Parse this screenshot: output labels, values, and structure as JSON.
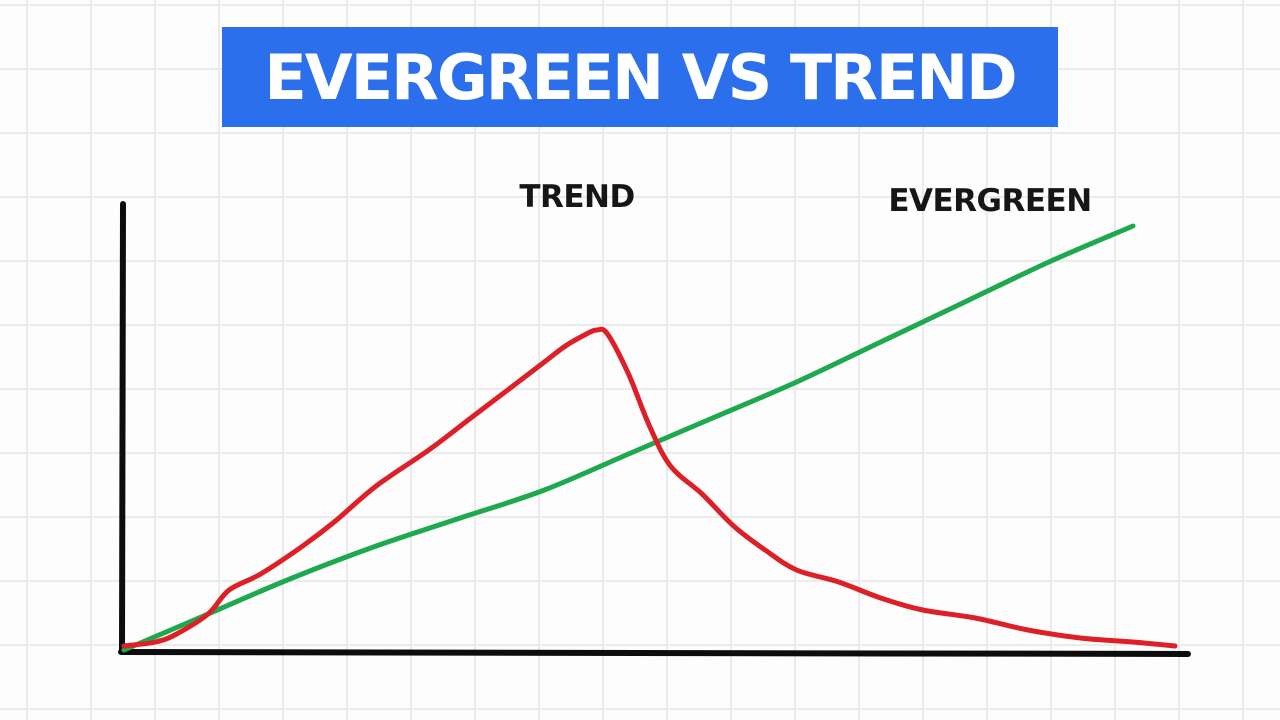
{
  "chart_data": {
    "type": "line",
    "title": "EVERGREEN VS TREND",
    "xlabel": "",
    "ylabel": "",
    "xlim": [
      0,
      100
    ],
    "ylim": [
      0,
      100
    ],
    "grid": true,
    "legend": "none",
    "series": [
      {
        "name": "TREND",
        "color": "#dd2027",
        "x": [
          0,
          3,
          5,
          8,
          10,
          13,
          17,
          20,
          24,
          29,
          33,
          37,
          40,
          42,
          44,
          45,
          46,
          48,
          50,
          52,
          55,
          58,
          61,
          64,
          68,
          72,
          76,
          81,
          86,
          91,
          96,
          100
        ],
        "y": [
          1,
          2,
          4,
          9,
          15,
          19,
          26,
          32,
          41,
          50,
          58,
          66,
          72,
          76,
          79,
          80,
          79,
          69,
          56,
          46,
          39,
          31,
          25,
          20,
          17,
          13,
          10,
          8,
          5,
          3,
          2,
          1
        ]
      },
      {
        "name": "EVERGREEN",
        "color": "#1fa94f",
        "x": [
          0,
          8,
          16,
          24,
          32,
          40,
          48,
          56,
          64,
          72,
          80,
          88,
          96
        ],
        "y": [
          0,
          9,
          18,
          26,
          33,
          40,
          49,
          58,
          67,
          77,
          87,
          97,
          106
        ]
      }
    ]
  }
}
